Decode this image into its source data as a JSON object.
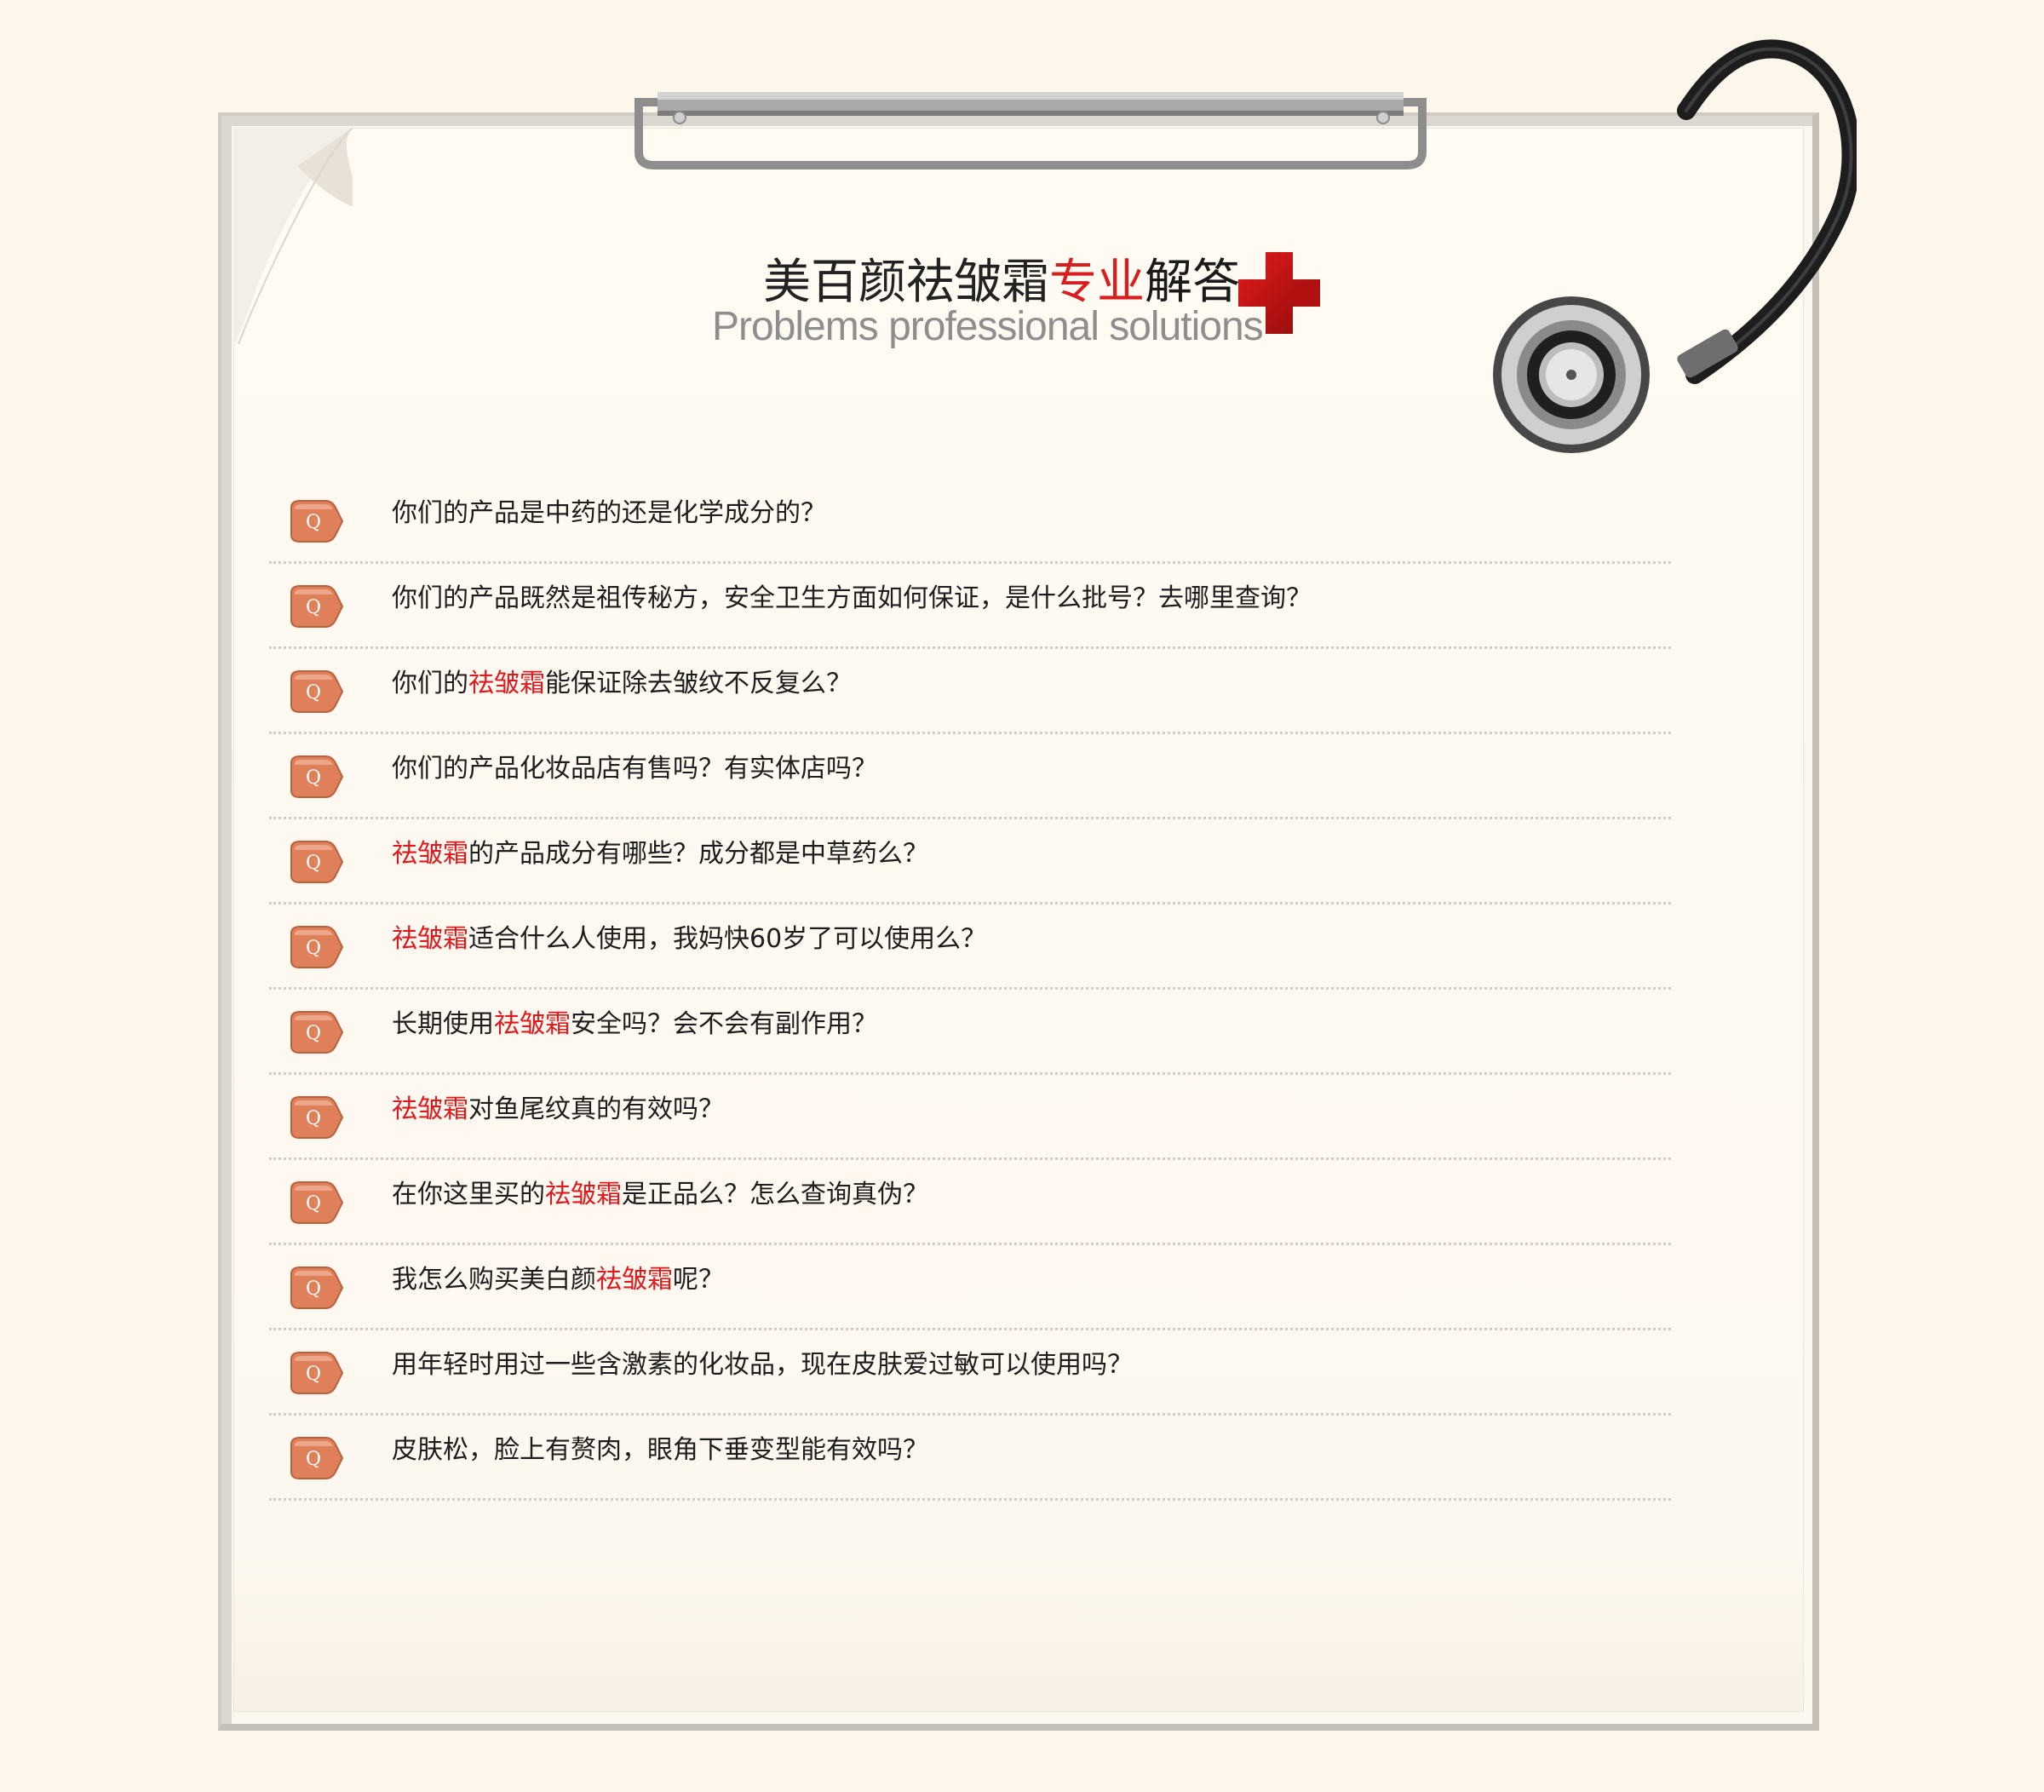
{
  "header": {
    "title_prefix": "美百颜祛皱霜",
    "title_accent": "专业",
    "title_suffix": "解答",
    "subtitle": "Problems professional solutions"
  },
  "faq": {
    "badge_letter": "Q",
    "items": [
      {
        "segments": [
          {
            "t": "你们的产品是中药的还是化学成分的？"
          }
        ]
      },
      {
        "segments": [
          {
            "t": "你们的产品既然是祖传秘方，安全卫生方面如何保证，是什么批号？去哪里查询？"
          }
        ]
      },
      {
        "segments": [
          {
            "t": "你们的"
          },
          {
            "t": "祛皱霜",
            "hl": true
          },
          {
            "t": "能保证除去皱纹不反复么？"
          }
        ]
      },
      {
        "segments": [
          {
            "t": "你们的产品化妆品店有售吗？有实体店吗？"
          }
        ]
      },
      {
        "segments": [
          {
            "t": "祛皱霜",
            "hl": true
          },
          {
            "t": "的产品成分有哪些？成分都是中草药么？"
          }
        ]
      },
      {
        "segments": [
          {
            "t": "祛皱霜",
            "hl": true
          },
          {
            "t": "适合什么人使用，我妈快60岁了可以使用么？"
          }
        ]
      },
      {
        "segments": [
          {
            "t": "长期使用"
          },
          {
            "t": "祛皱霜",
            "hl": true
          },
          {
            "t": "安全吗？会不会有副作用？"
          }
        ]
      },
      {
        "segments": [
          {
            "t": "祛皱霜",
            "hl": true
          },
          {
            "t": "对鱼尾纹真的有效吗？"
          }
        ]
      },
      {
        "segments": [
          {
            "t": "在你这里买的"
          },
          {
            "t": "祛皱霜",
            "hl": true
          },
          {
            "t": "是正品么？怎么查询真伪？"
          }
        ]
      },
      {
        "segments": [
          {
            "t": "我怎么购买美白颜"
          },
          {
            "t": "祛皱霜",
            "hl": true
          },
          {
            "t": "呢？"
          }
        ]
      },
      {
        "segments": [
          {
            "t": "用年轻时用过一些含激素的化妆品，现在皮肤爱过敏可以使用吗？"
          }
        ]
      },
      {
        "segments": [
          {
            "t": "皮肤松，脸上有赘肉，眼角下垂变型能有效吗？"
          }
        ]
      }
    ]
  },
  "colors": {
    "background": "#fdf6eb",
    "accent_red": "#d81e1e",
    "highlight_red": "#e0191d",
    "badge_orange": "#e0805a",
    "text": "#1d1d1d",
    "subtitle_gray": "#8e8e8e"
  },
  "icons": {
    "clip": "clipboard-clip-icon",
    "stethoscope": "stethoscope-icon",
    "cross": "red-cross-icon",
    "badge": "q-badge-icon"
  }
}
